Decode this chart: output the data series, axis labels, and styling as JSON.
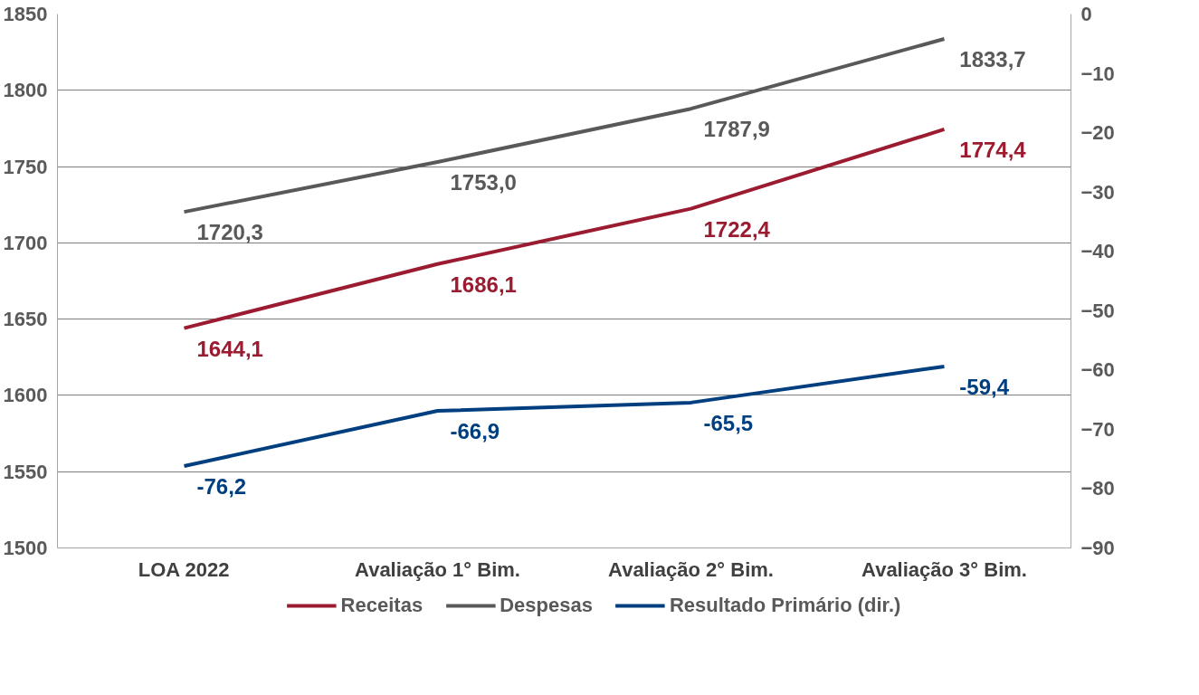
{
  "chart_data": {
    "type": "line",
    "categories": [
      "LOA 2022",
      "Avaliação 1° Bim.",
      "Avaliação 2° Bim.",
      "Avaliação 3° Bim."
    ],
    "ylim": [
      1500,
      1850
    ],
    "yticks": [
      1500,
      1550,
      1600,
      1650,
      1700,
      1750,
      1800,
      1850
    ],
    "y2lim": [
      -90,
      0
    ],
    "y2ticks": [
      -90,
      -80,
      -70,
      -60,
      -50,
      -40,
      -30,
      -20,
      -10,
      0
    ],
    "grid": "y",
    "legend": "bottom",
    "marker": "none",
    "line_style": "solid",
    "series": [
      {
        "name": "Receitas",
        "color": "#9b1b30",
        "values": [
          1644.1,
          1686.1,
          1722.4,
          1774.4
        ],
        "value_labels": [
          "1644,1",
          "1686,1",
          "1722,4",
          "1774,4"
        ]
      },
      {
        "name": "Despesas",
        "color": "#595959",
        "values": [
          1720.3,
          1753.0,
          1787.9,
          1833.7
        ],
        "value_labels": [
          "1720,3",
          "1753,0",
          "1787,9",
          "1833,7"
        ]
      },
      {
        "name": "Resultado Primário (dir.)",
        "color": "#003f7f",
        "axis": "y2",
        "values": [
          -76.2,
          -66.9,
          -65.5,
          -59.4
        ],
        "value_labels": [
          "-76,2",
          "-66,9",
          "-65,5",
          "-59,4"
        ]
      }
    ]
  }
}
